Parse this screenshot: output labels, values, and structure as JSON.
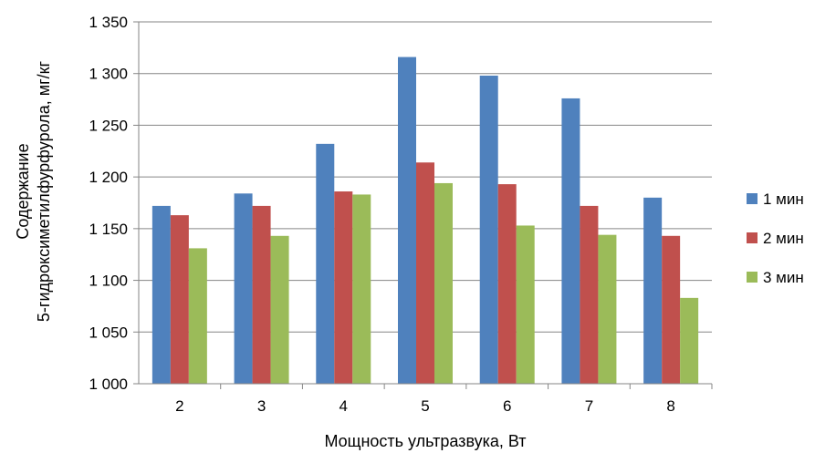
{
  "chart_data": {
    "type": "bar",
    "title": "",
    "xlabel": "Мощность ультразвука, Вт",
    "ylabel_lines": [
      "Содержание",
      "5-гидроксиметилфурфурола, мг/кг"
    ],
    "categories": [
      "2",
      "3",
      "4",
      "5",
      "6",
      "7",
      "8"
    ],
    "series": [
      {
        "name": "1 мин",
        "color": "#4F81BD",
        "values": [
          1172,
          1184,
          1232,
          1316,
          1298,
          1276,
          1180
        ]
      },
      {
        "name": "2 мин",
        "color": "#C0504D",
        "values": [
          1163,
          1172,
          1186,
          1214,
          1193,
          1172,
          1143
        ]
      },
      {
        "name": "3 мин",
        "color": "#9BBB59",
        "values": [
          1131,
          1143,
          1183,
          1194,
          1153,
          1144,
          1083
        ]
      }
    ],
    "ylim": [
      1000,
      1350
    ],
    "ytick_step": 50,
    "ytick_labels": [
      "1 000",
      "1 050",
      "1 100",
      "1 150",
      "1 200",
      "1 250",
      "1 300",
      "1 350"
    ],
    "grid": true,
    "legend_position": "right"
  }
}
